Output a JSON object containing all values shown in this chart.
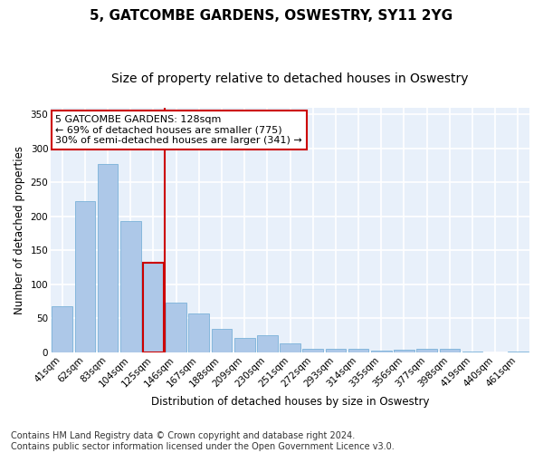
{
  "title": "5, GATCOMBE GARDENS, OSWESTRY, SY11 2YG",
  "subtitle": "Size of property relative to detached houses in Oswestry",
  "xlabel": "Distribution of detached houses by size in Oswestry",
  "ylabel": "Number of detached properties",
  "categories": [
    "41sqm",
    "62sqm",
    "83sqm",
    "104sqm",
    "125sqm",
    "146sqm",
    "167sqm",
    "188sqm",
    "209sqm",
    "230sqm",
    "251sqm",
    "272sqm",
    "293sqm",
    "314sqm",
    "335sqm",
    "356sqm",
    "377sqm",
    "398sqm",
    "419sqm",
    "440sqm",
    "461sqm"
  ],
  "values": [
    68,
    222,
    277,
    193,
    132,
    73,
    57,
    35,
    21,
    25,
    13,
    6,
    5,
    6,
    3,
    4,
    5,
    6,
    2,
    0,
    2
  ],
  "highlight_index": 4,
  "bar_color": "#adc8e8",
  "bar_edge_color": "#6aaad4",
  "highlight_bar_edge_color": "#cc0000",
  "vline_color": "#cc0000",
  "annotation_text": "5 GATCOMBE GARDENS: 128sqm\n← 69% of detached houses are smaller (775)\n30% of semi-detached houses are larger (341) →",
  "annotation_box_color": "#ffffff",
  "annotation_box_edge_color": "#cc0000",
  "footer_text": "Contains HM Land Registry data © Crown copyright and database right 2024.\nContains public sector information licensed under the Open Government Licence v3.0.",
  "ylim": [
    0,
    360
  ],
  "yticks": [
    0,
    50,
    100,
    150,
    200,
    250,
    300,
    350
  ],
  "background_color": "#e8f0fa",
  "grid_color": "#ffffff",
  "title_fontsize": 11,
  "subtitle_fontsize": 10,
  "label_fontsize": 8.5,
  "tick_fontsize": 7.5,
  "footer_fontsize": 7,
  "annot_fontsize": 8
}
